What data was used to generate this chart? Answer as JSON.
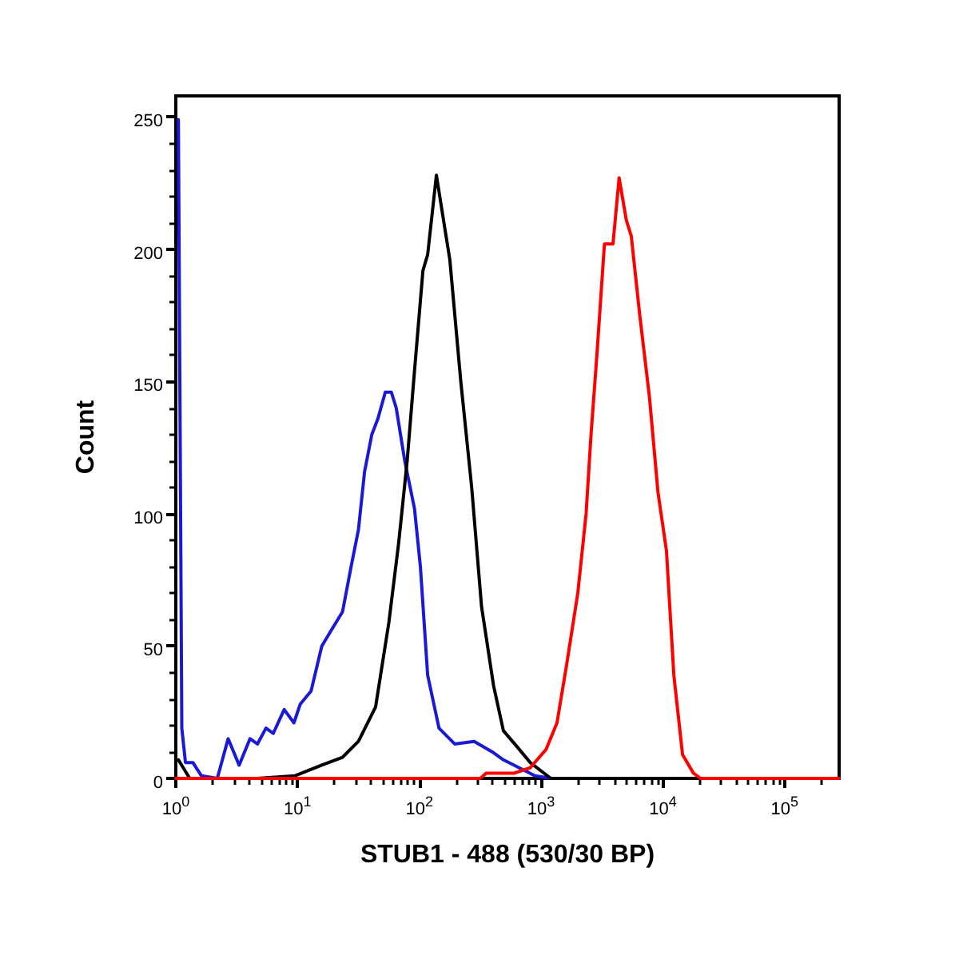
{
  "chart_data": {
    "type": "line",
    "xlabel": "STUB1 - 488 (530/30 BP)",
    "ylabel": "Count",
    "log": "x",
    "xlim": [
      1,
      280000
    ],
    "xticks": [
      {
        "value": 1,
        "label": "10$^{0}$"
      },
      {
        "value": 10,
        "label": "10$^{1}$"
      },
      {
        "value": 100,
        "label": "10$^{2}$"
      },
      {
        "value": 1000,
        "label": "10$^{3}$"
      },
      {
        "value": 10000,
        "label": "10$^{4}$"
      },
      {
        "value": 100000,
        "label": "10$^{5}$"
      }
    ],
    "ylim": [
      0,
      258
    ],
    "yticks": [
      0,
      50,
      100,
      150,
      200,
      250
    ],
    "grid": false,
    "marker": "none",
    "line_style": "solid",
    "series": [
      {
        "color": "#1a1ad6",
        "x": [
          1.05,
          1.12,
          1.2,
          1.38,
          1.62,
          2.19,
          2.69,
          3.31,
          4.07,
          4.68,
          5.5,
          6.31,
          7.76,
          9.33,
          10.5,
          12.9,
          15.8,
          19.5,
          23.4,
          27.5,
          31.6,
          35.5,
          40.7,
          45.7,
          52.5,
          58.9,
          64.6,
          75.9,
          91.2,
          102,
          117,
          145,
          195,
          282,
          398,
          490,
          661,
          891,
          1200,
          280000
        ],
        "values": [
          249,
          19,
          6,
          6,
          1,
          0,
          15,
          5,
          15,
          13,
          19,
          17,
          26,
          21,
          28,
          33,
          50,
          57,
          63,
          80,
          94,
          116,
          130,
          136,
          146,
          146,
          140,
          120,
          102,
          80,
          39,
          19,
          13,
          14,
          10,
          7,
          4,
          1,
          0,
          0
        ]
      },
      {
        "color": "#000000",
        "x": [
          1.05,
          1.3,
          4.68,
          9.55,
          15.8,
          23.4,
          31.6,
          43.7,
          56.2,
          67.6,
          79.4,
          91.2,
          107,
          117,
          138,
          178,
          219,
          269,
          324,
          407,
          490,
          661,
          813,
          1200,
          280000
        ],
        "values": [
          7,
          0,
          0,
          1,
          5,
          8,
          14,
          27,
          59,
          89,
          120,
          154,
          192,
          198,
          228,
          196,
          150,
          110,
          65,
          35,
          18,
          11,
          6,
          0,
          0
        ]
      },
      {
        "color": "#ff0000",
        "x": [
          1,
          316,
          355,
          603,
          813,
          1100,
          1350,
          1620,
          2000,
          2340,
          2570,
          2880,
          3310,
          3890,
          4370,
          5010,
          5500,
          6460,
          7760,
          9120,
          10700,
          12300,
          14500,
          17800,
          20400,
          280000
        ],
        "values": [
          0,
          0,
          2,
          2,
          4,
          11,
          21,
          43,
          70,
          100,
          130,
          161,
          202,
          202,
          227,
          211,
          205,
          175,
          144,
          108,
          86,
          39,
          9,
          2,
          0,
          0
        ]
      }
    ]
  }
}
